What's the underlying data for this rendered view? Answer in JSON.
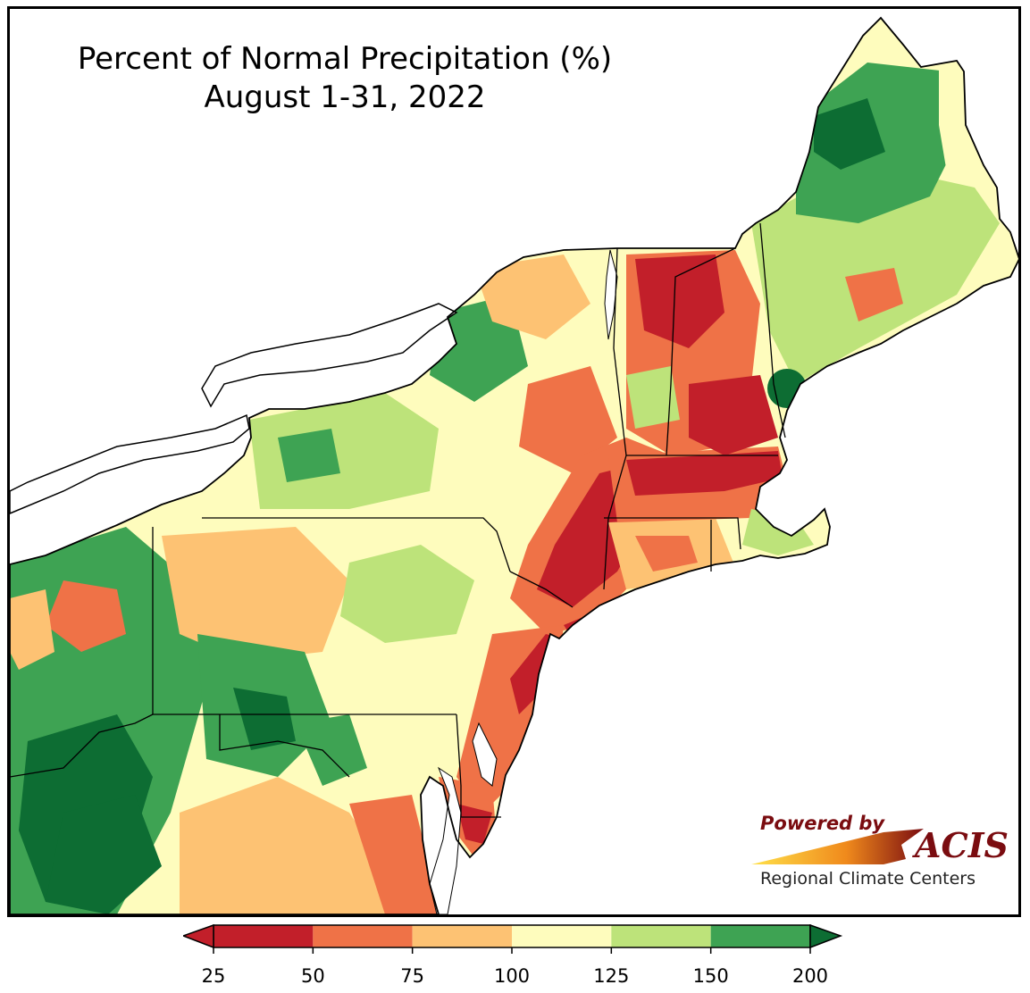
{
  "title": "Percent of Normal Precipitation (%)",
  "subtitle": "August 1-31, 2022",
  "logo": {
    "powered_by": "Powered by",
    "name": "ACIS",
    "tagline": "Regional Climate Centers"
  },
  "legend": {
    "ticks": [
      "25",
      "50",
      "75",
      "100",
      "125",
      "150",
      "200"
    ],
    "colors": [
      "#c21f2a",
      "#ef7247",
      "#fdc273",
      "#fefcbd",
      "#bde37a",
      "#3ea353",
      "#0d6d33"
    ],
    "extend": "both"
  },
  "colors": {
    "very_dry": "#c21f2a",
    "dry": "#ef7247",
    "slightly_dry": "#fdc273",
    "normal": "#fefcbd",
    "slightly_wet": "#bde37a",
    "wet": "#3ea353",
    "very_wet": "#0d6d33",
    "water": "#ffffff",
    "border": "#000000"
  }
}
